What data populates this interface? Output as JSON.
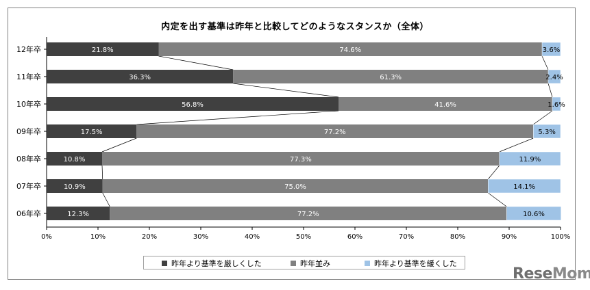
{
  "chart_data": {
    "type": "bar",
    "orientation": "horizontal-stacked-100",
    "title": "内定を出す基準は昨年と比較してどのようなスタンスか（全体）",
    "categories": [
      "12年卒",
      "11年卒",
      "10年卒",
      "09年卒",
      "08年卒",
      "07年卒",
      "06年卒"
    ],
    "series": [
      {
        "name": "昨年より基準を厳しくした",
        "color": "#404040",
        "values": [
          21.8,
          36.3,
          56.8,
          17.5,
          10.8,
          10.9,
          12.3
        ],
        "labels": [
          "21.8%",
          "36.3%",
          "56.8%",
          "17.5%",
          "10.8%",
          "10.9%",
          "12.3%"
        ]
      },
      {
        "name": "昨年並み",
        "color": "#808080",
        "values": [
          74.6,
          61.3,
          41.6,
          77.2,
          77.3,
          75.0,
          77.2
        ],
        "labels": [
          "74.6%",
          "61.3%",
          "41.6%",
          "77.2%",
          "77.3%",
          "75.0%",
          "77.2%"
        ]
      },
      {
        "name": "昨年より基準を緩くした",
        "color": "#9fc3e6",
        "values": [
          3.6,
          2.4,
          1.6,
          5.3,
          11.9,
          14.1,
          10.6
        ],
        "labels": [
          "3.6%",
          "2.4%",
          "1.6%",
          "5.3%",
          "11.9%",
          "14.1%",
          "10.6%"
        ]
      }
    ],
    "xlim": [
      0,
      100
    ],
    "xticks": [
      "0%",
      "10%",
      "20%",
      "30%",
      "40%",
      "50%",
      "60%",
      "70%",
      "80%",
      "90%",
      "100%"
    ],
    "series_lines": true,
    "grid": false,
    "legend_position": "bottom"
  },
  "watermark": {
    "text_main": "Rese",
    "text_accent": "Mom"
  }
}
